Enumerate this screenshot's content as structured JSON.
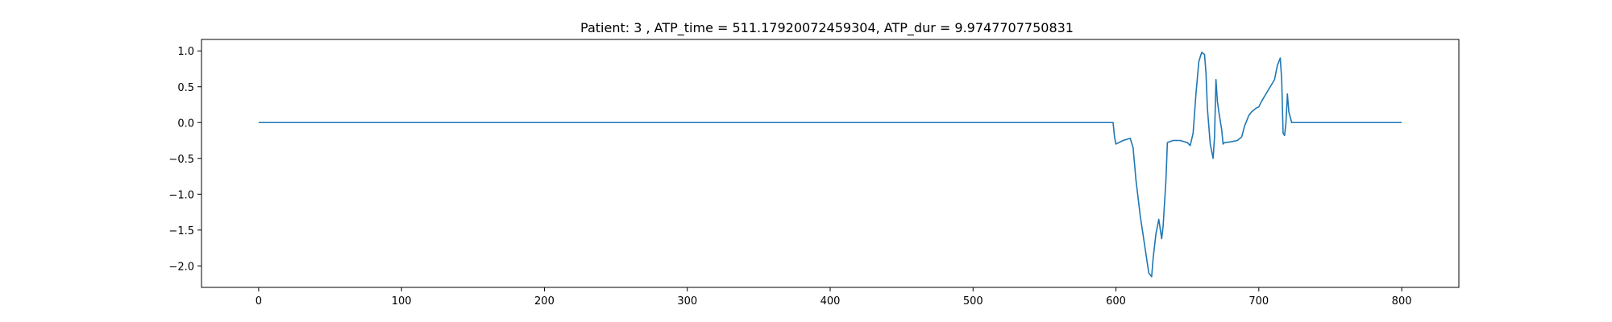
{
  "chart_data": {
    "type": "line",
    "title": "Patient: 3 , ATP_time = 511.17920072459304, ATP_dur = 9.9747707750831",
    "xlabel": "",
    "ylabel": "",
    "xlim": [
      -40,
      840
    ],
    "ylim": [
      -2.3,
      1.16
    ],
    "xticks": [
      0,
      100,
      200,
      300,
      400,
      500,
      600,
      700,
      800
    ],
    "yticks": [
      1.0,
      0.5,
      0.0,
      -0.5,
      -1.0,
      -1.5,
      -2.0
    ],
    "grid": false,
    "series": [
      {
        "color": "#1f77b4",
        "x": [
          0,
          100,
          200,
          300,
          400,
          500,
          598,
          599,
          600,
          605,
          610,
          612,
          614,
          617,
          620,
          623,
          625,
          626,
          628,
          630,
          632,
          633,
          635,
          636,
          640,
          645,
          650,
          652,
          654,
          656,
          658,
          660,
          662,
          663,
          664,
          666,
          668,
          669,
          670,
          671,
          672,
          674,
          675,
          676,
          680,
          685,
          688,
          690,
          693,
          695,
          698,
          700,
          702,
          705,
          708,
          711,
          713,
          715,
          716,
          717,
          718,
          719,
          720,
          721,
          723,
          725,
          730,
          750,
          800
        ],
        "y": [
          0,
          0,
          0,
          0,
          0,
          0,
          0,
          -0.2,
          -0.3,
          -0.25,
          -0.22,
          -0.35,
          -0.8,
          -1.3,
          -1.7,
          -2.1,
          -2.15,
          -1.9,
          -1.55,
          -1.35,
          -1.62,
          -1.45,
          -0.8,
          -0.28,
          -0.25,
          -0.25,
          -0.28,
          -0.32,
          -0.15,
          0.4,
          0.85,
          0.98,
          0.95,
          0.7,
          0.2,
          -0.3,
          -0.5,
          -0.2,
          0.6,
          0.3,
          0.15,
          -0.1,
          -0.3,
          -0.28,
          -0.27,
          -0.25,
          -0.2,
          -0.05,
          0.1,
          0.15,
          0.2,
          0.22,
          0.3,
          0.4,
          0.5,
          0.6,
          0.8,
          0.9,
          0.6,
          -0.15,
          -0.18,
          0.0,
          0.4,
          0.15,
          0.0,
          0.0,
          0.0,
          0.0,
          0.0
        ]
      }
    ]
  }
}
